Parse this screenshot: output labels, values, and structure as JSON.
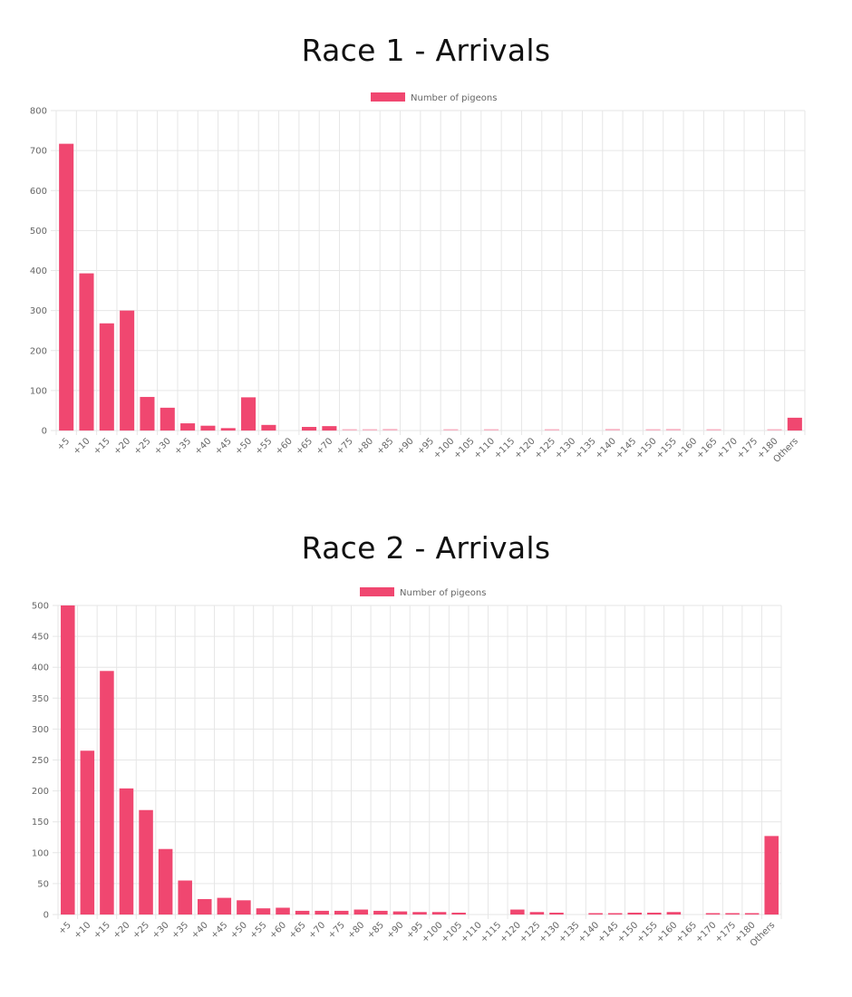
{
  "chart_data": [
    {
      "type": "bar",
      "title": "Race 1 - Arrivals",
      "legend": {
        "label": "Number of pigeons",
        "placement": "top-center"
      },
      "colors": {
        "bar": "#f04770",
        "bar_light": "#f7b3c3",
        "grid": "#e6e6e6",
        "axis_text": "#666666"
      },
      "ylim": [
        0,
        800
      ],
      "yticks": [
        0,
        100,
        200,
        300,
        400,
        500,
        600,
        700,
        800
      ],
      "grid": true,
      "categories": [
        "+5",
        "+10",
        "+15",
        "+20",
        "+25",
        "+30",
        "+35",
        "+40",
        "+45",
        "+50",
        "+55",
        "+60",
        "+65",
        "+70",
        "+75",
        "+80",
        "+85",
        "+90",
        "+95",
        "+100",
        "+105",
        "+110",
        "+115",
        "+120",
        "+125",
        "+130",
        "+135",
        "+140",
        "+145",
        "+150",
        "+155",
        "+160",
        "+165",
        "+170",
        "+175",
        "+180",
        "Others"
      ],
      "values": [
        717,
        393,
        268,
        300,
        84,
        57,
        18,
        12,
        6,
        83,
        14,
        0,
        9,
        11,
        2,
        2,
        4,
        0,
        0,
        3,
        0,
        2,
        0,
        0,
        3,
        0,
        0,
        4,
        0,
        2,
        4,
        0,
        2,
        0,
        0,
        2,
        32
      ]
    },
    {
      "type": "bar",
      "title": "Race 2 - Arrivals",
      "legend": {
        "label": "Number of pigeons",
        "placement": "top-center"
      },
      "colors": {
        "bar": "#f04770",
        "bar_light": "#f7b3c3",
        "grid": "#e6e6e6",
        "axis_text": "#666666"
      },
      "ylim": [
        0,
        500
      ],
      "yticks": [
        0,
        50,
        100,
        150,
        200,
        250,
        300,
        350,
        400,
        450,
        500
      ],
      "grid": true,
      "categories": [
        "+5",
        "+10",
        "+15",
        "+20",
        "+25",
        "+30",
        "+35",
        "+40",
        "+45",
        "+50",
        "+55",
        "+60",
        "+65",
        "+70",
        "+75",
        "+80",
        "+85",
        "+90",
        "+95",
        "+100",
        "+105",
        "+110",
        "+115",
        "+120",
        "+125",
        "+130",
        "+135",
        "+140",
        "+145",
        "+150",
        "+155",
        "+160",
        "+165",
        "+170",
        "+175",
        "+180",
        "Others"
      ],
      "values": [
        500,
        265,
        394,
        204,
        169,
        106,
        55,
        25,
        27,
        23,
        10,
        11,
        6,
        6,
        6,
        8,
        6,
        5,
        4,
        4,
        3,
        0,
        0,
        8,
        4,
        3,
        0,
        1,
        1,
        3,
        3,
        4,
        0,
        1,
        1,
        1,
        127
      ]
    }
  ]
}
